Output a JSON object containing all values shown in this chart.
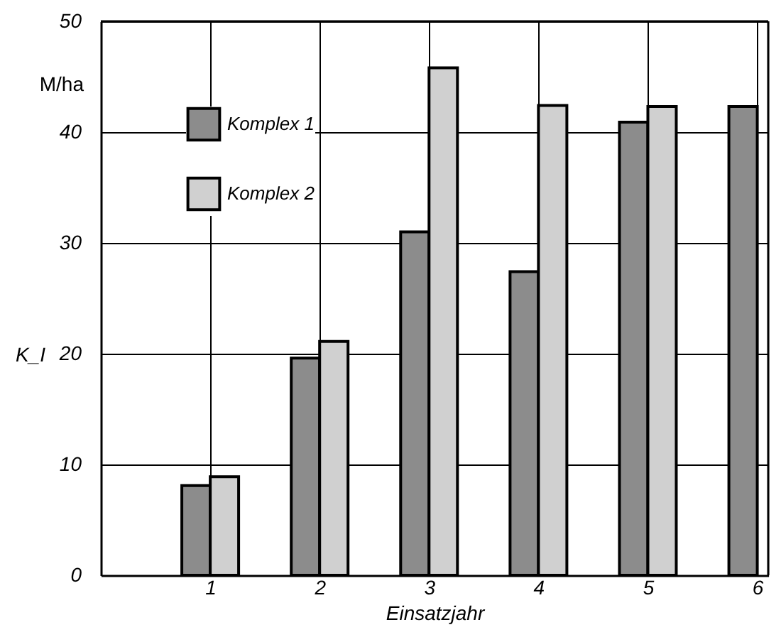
{
  "chart_data": {
    "type": "bar",
    "xlabel": "Einsatzjahr",
    "ylabel": "K_I",
    "annotations": [
      "M/ha"
    ],
    "x": [
      1,
      2,
      3,
      4,
      5,
      6
    ],
    "series": [
      {
        "name": "Komplex 1",
        "color": "#8c8c8c",
        "values": [
          8.1,
          19.6,
          31.0,
          27.4,
          40.9,
          42.3
        ]
      },
      {
        "name": "Komplex 2",
        "color": "#d0d0d0",
        "values": [
          8.9,
          21.1,
          45.8,
          42.4,
          42.3,
          null
        ]
      }
    ],
    "xlim": [
      0,
      6.1
    ],
    "xticks": [
      1,
      2,
      3,
      4,
      5,
      6
    ],
    "ylim": [
      0,
      50
    ],
    "yticks": [
      0,
      10,
      20,
      30,
      40,
      50
    ],
    "grid": true,
    "legend": "top left"
  }
}
